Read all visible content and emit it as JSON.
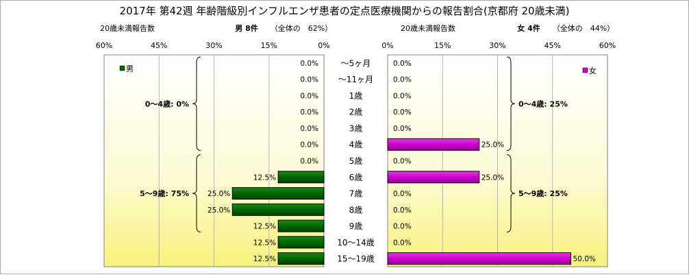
{
  "title": "2017年 第42週 年齢階級別インフルエンザ患者の定点医療機関からの報告割合(京都府 20歳未満)",
  "left_header": {
    "caption": "20歳未満報告数",
    "summary": "男 8件",
    "share": "（全体の　62%）"
  },
  "right_header": {
    "caption": "20歳未満報告数",
    "summary": "女 4件",
    "share": "（全体の　44%）"
  },
  "chart_data": {
    "type": "bar",
    "categories": [
      "～5ヶ月",
      "～11ヶ月",
      "1歳",
      "2歳",
      "3歳",
      "4歳",
      "5歳",
      "6歳",
      "7歳",
      "8歳",
      "9歳",
      "10～14歳",
      "15～19歳"
    ],
    "axis_ticks": [
      "60%",
      "45%",
      "30%",
      "15%",
      "0%",
      "0%",
      "15%",
      "30%",
      "45%",
      "60%"
    ],
    "xlim": [
      0,
      60
    ],
    "grid": true,
    "legend_placement": "top-left / top-right",
    "series": [
      {
        "name": "男",
        "color": "#006600",
        "values": [
          0,
          0,
          0,
          0,
          0,
          0,
          0,
          12.5,
          25,
          25,
          12.5,
          12.5,
          12.5
        ],
        "labels": [
          "0.0%",
          "0.0%",
          "0.0%",
          "0.0%",
          "0.0%",
          "0.0%",
          "0.0%",
          "12.5%",
          "25.0%",
          "25.0%",
          "12.5%",
          "12.5%",
          "12.5%"
        ]
      },
      {
        "name": "女",
        "color": "#cc00cc",
        "values": [
          0,
          0,
          0,
          0,
          0,
          25,
          0,
          25,
          0,
          0,
          0,
          0,
          50
        ],
        "labels": [
          "0.0%",
          "0.0%",
          "0.0%",
          "0.0%",
          "0.0%",
          "25.0%",
          "0.0%",
          "25.0%",
          "0.0%",
          "0.0%",
          "0.0%",
          "0.0%",
          "50.0%"
        ]
      }
    ],
    "annotations": {
      "male": [
        {
          "text": "0～4歳: 0%",
          "from": 0,
          "to": 5
        },
        {
          "text": "5～9歳: 75%",
          "from": 6,
          "to": 10
        }
      ],
      "female": [
        {
          "text": "0～4歳: 25%",
          "from": 0,
          "to": 5
        },
        {
          "text": "5～9歳: 25%",
          "from": 6,
          "to": 10
        }
      ]
    }
  }
}
